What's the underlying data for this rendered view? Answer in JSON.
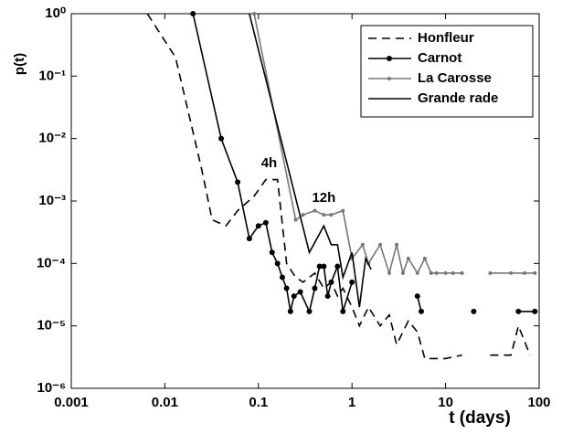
{
  "chart_data": {
    "type": "line",
    "xscale": "log",
    "yscale": "log",
    "xlabel": "t (days)",
    "ylabel": "p(t)",
    "xlim": [
      0.001,
      100
    ],
    "ylim": [
      1e-06,
      1
    ],
    "xticks": [
      0.001,
      0.01,
      0.1,
      1,
      10,
      100
    ],
    "yticks": [
      {
        "value": 1e-06,
        "label": "10⁻⁶"
      },
      {
        "value": 1e-05,
        "label": "10⁻⁵"
      },
      {
        "value": 0.0001,
        "label": "10⁻⁴"
      },
      {
        "value": 0.001,
        "label": "10⁻³"
      },
      {
        "value": 0.01,
        "label": "10⁻²"
      },
      {
        "value": 0.1,
        "label": "10⁻¹"
      },
      {
        "value": 1,
        "label": "10⁰"
      }
    ],
    "legend": "upper right",
    "annotations": [
      {
        "text": "4h",
        "x": 0.13,
        "y": 0.004
      },
      {
        "text": "12h",
        "x": 0.5,
        "y": 0.0011
      }
    ],
    "series": [
      {
        "name": "Honfleur",
        "color": "#000000",
        "dash": "dashed",
        "marker": "none",
        "x": [
          0.0065,
          0.013,
          0.018,
          0.025,
          0.032,
          0.045,
          0.06,
          0.09,
          0.12,
          0.16,
          0.2,
          0.25,
          0.3,
          0.4,
          0.5,
          0.6,
          0.7,
          0.8,
          1,
          1.2,
          1.5,
          2,
          2.5,
          3,
          4,
          5,
          6,
          8,
          10,
          15,
          20,
          30,
          50,
          60,
          80
        ],
        "values": [
          1,
          0.2,
          0.025,
          0.003,
          0.0005,
          0.0004,
          0.0007,
          0.0012,
          0.0022,
          0.0022,
          0.0001,
          6e-05,
          5e-05,
          7e-05,
          4e-05,
          5e-05,
          3e-05,
          4e-05,
          2e-05,
          1e-05,
          2e-05,
          1e-05,
          1.5e-05,
          5e-06,
          1.2e-05,
          8e-06,
          3e-06,
          3e-06,
          3e-06,
          3.4e-06,
          null,
          3.4e-06,
          3.4e-06,
          1e-05,
          3.4e-06
        ]
      },
      {
        "name": "Carnot",
        "color": "#000000",
        "dash": "solid",
        "marker": "dot",
        "x": [
          0.02,
          0.04,
          0.06,
          0.08,
          0.1,
          0.12,
          0.14,
          0.16,
          0.18,
          0.2,
          0.22,
          0.24,
          0.28,
          0.35,
          0.4,
          0.45,
          0.5,
          0.55,
          0.6,
          0.7,
          0.8,
          1,
          3,
          5,
          5.5,
          10,
          20,
          50,
          60,
          90
        ],
        "values": [
          1,
          0.01,
          0.002,
          0.00025,
          0.0004,
          0.00045,
          0.00015,
          0.0001,
          6e-05,
          4e-05,
          1.7e-05,
          3e-05,
          3.5e-05,
          1.7e-05,
          4e-05,
          9e-05,
          9e-05,
          3e-05,
          5e-05,
          9e-05,
          1.7e-05,
          5e-05,
          null,
          3e-05,
          1.7e-05,
          null,
          1.7e-05,
          null,
          1.7e-05,
          1.7e-05
        ]
      },
      {
        "name": "La Carosse",
        "color": "#777777",
        "dash": "solid",
        "marker": "dot",
        "x": [
          0.09,
          0.25,
          0.3,
          0.4,
          0.5,
          0.6,
          0.8,
          1,
          1.3,
          1.5,
          2,
          2.5,
          3,
          3.5,
          4,
          5,
          6,
          7,
          8,
          10,
          12,
          15,
          20,
          30,
          50,
          70,
          90
        ],
        "values": [
          1,
          0.0005,
          0.0006,
          0.0007,
          0.0006,
          0.0006,
          0.0007,
          0.00012,
          0.0002,
          0.0001,
          0.0002,
          7e-05,
          0.0002,
          7e-05,
          0.00012,
          7e-05,
          0.00012,
          7e-05,
          7e-05,
          7e-05,
          7e-05,
          7e-05,
          null,
          7e-05,
          7e-05,
          7e-05,
          7e-05
        ]
      },
      {
        "name": "Grande rade",
        "color": "#000000",
        "dash": "solid",
        "marker": "none",
        "x": [
          0.08,
          0.35,
          0.5,
          0.6,
          0.7,
          0.8,
          1,
          1.2,
          1.4,
          1.6
        ],
        "values": [
          1,
          0.00015,
          0.0004,
          0.0002,
          0.0002,
          6e-05,
          0.00015,
          2e-05,
          0.00012,
          8e-05
        ]
      }
    ]
  }
}
